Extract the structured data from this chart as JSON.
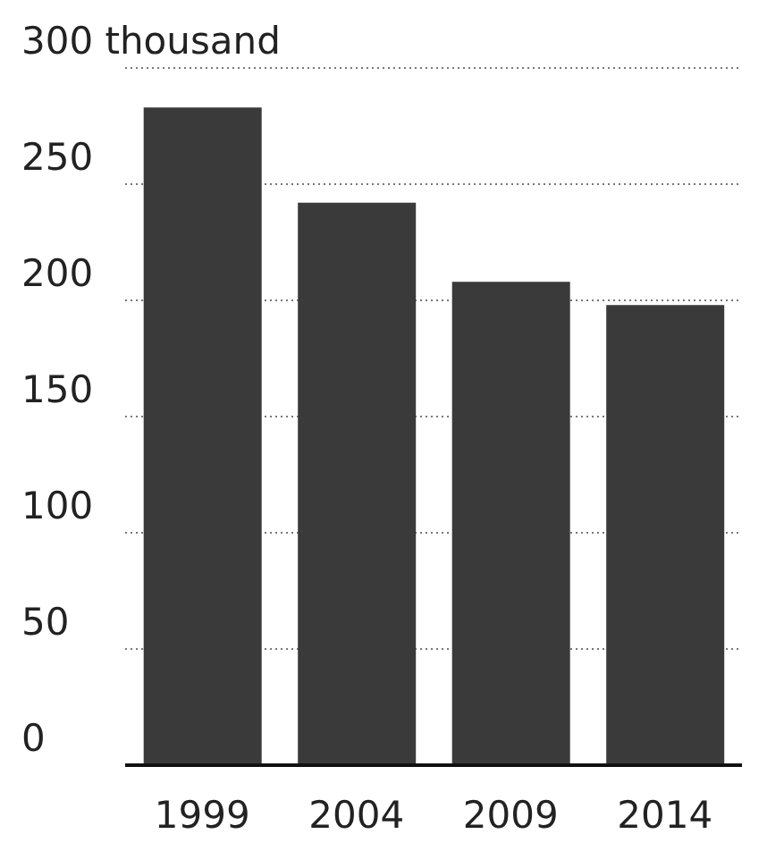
{
  "chart_data": {
    "type": "bar",
    "categories": [
      "1999",
      "2004",
      "2009",
      "2014"
    ],
    "values": [
      283,
      242,
      208,
      198
    ],
    "color": "#3a3a3a",
    "ylim": [
      0,
      300
    ],
    "yticks": [
      0,
      50,
      100,
      150,
      200,
      250,
      {
        "value": 300,
        "label": "300 thousand"
      }
    ],
    "grid": "y"
  }
}
